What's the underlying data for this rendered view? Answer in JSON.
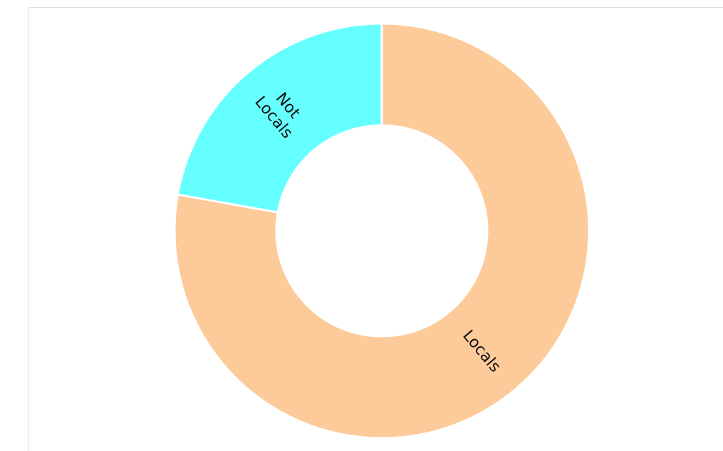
{
  "chart_data": {
    "type": "pie",
    "variant": "donut",
    "title": "",
    "categories": [
      "Locals",
      "Not Locals"
    ],
    "values": [
      77.8,
      22.2
    ],
    "labels": [
      [
        "Locals"
      ],
      [
        "Not",
        "Locals"
      ]
    ],
    "colors": [
      "#fdca9a",
      "#66ffff"
    ],
    "start_angle_deg": 0,
    "direction": "clockwise",
    "legend": "none"
  }
}
